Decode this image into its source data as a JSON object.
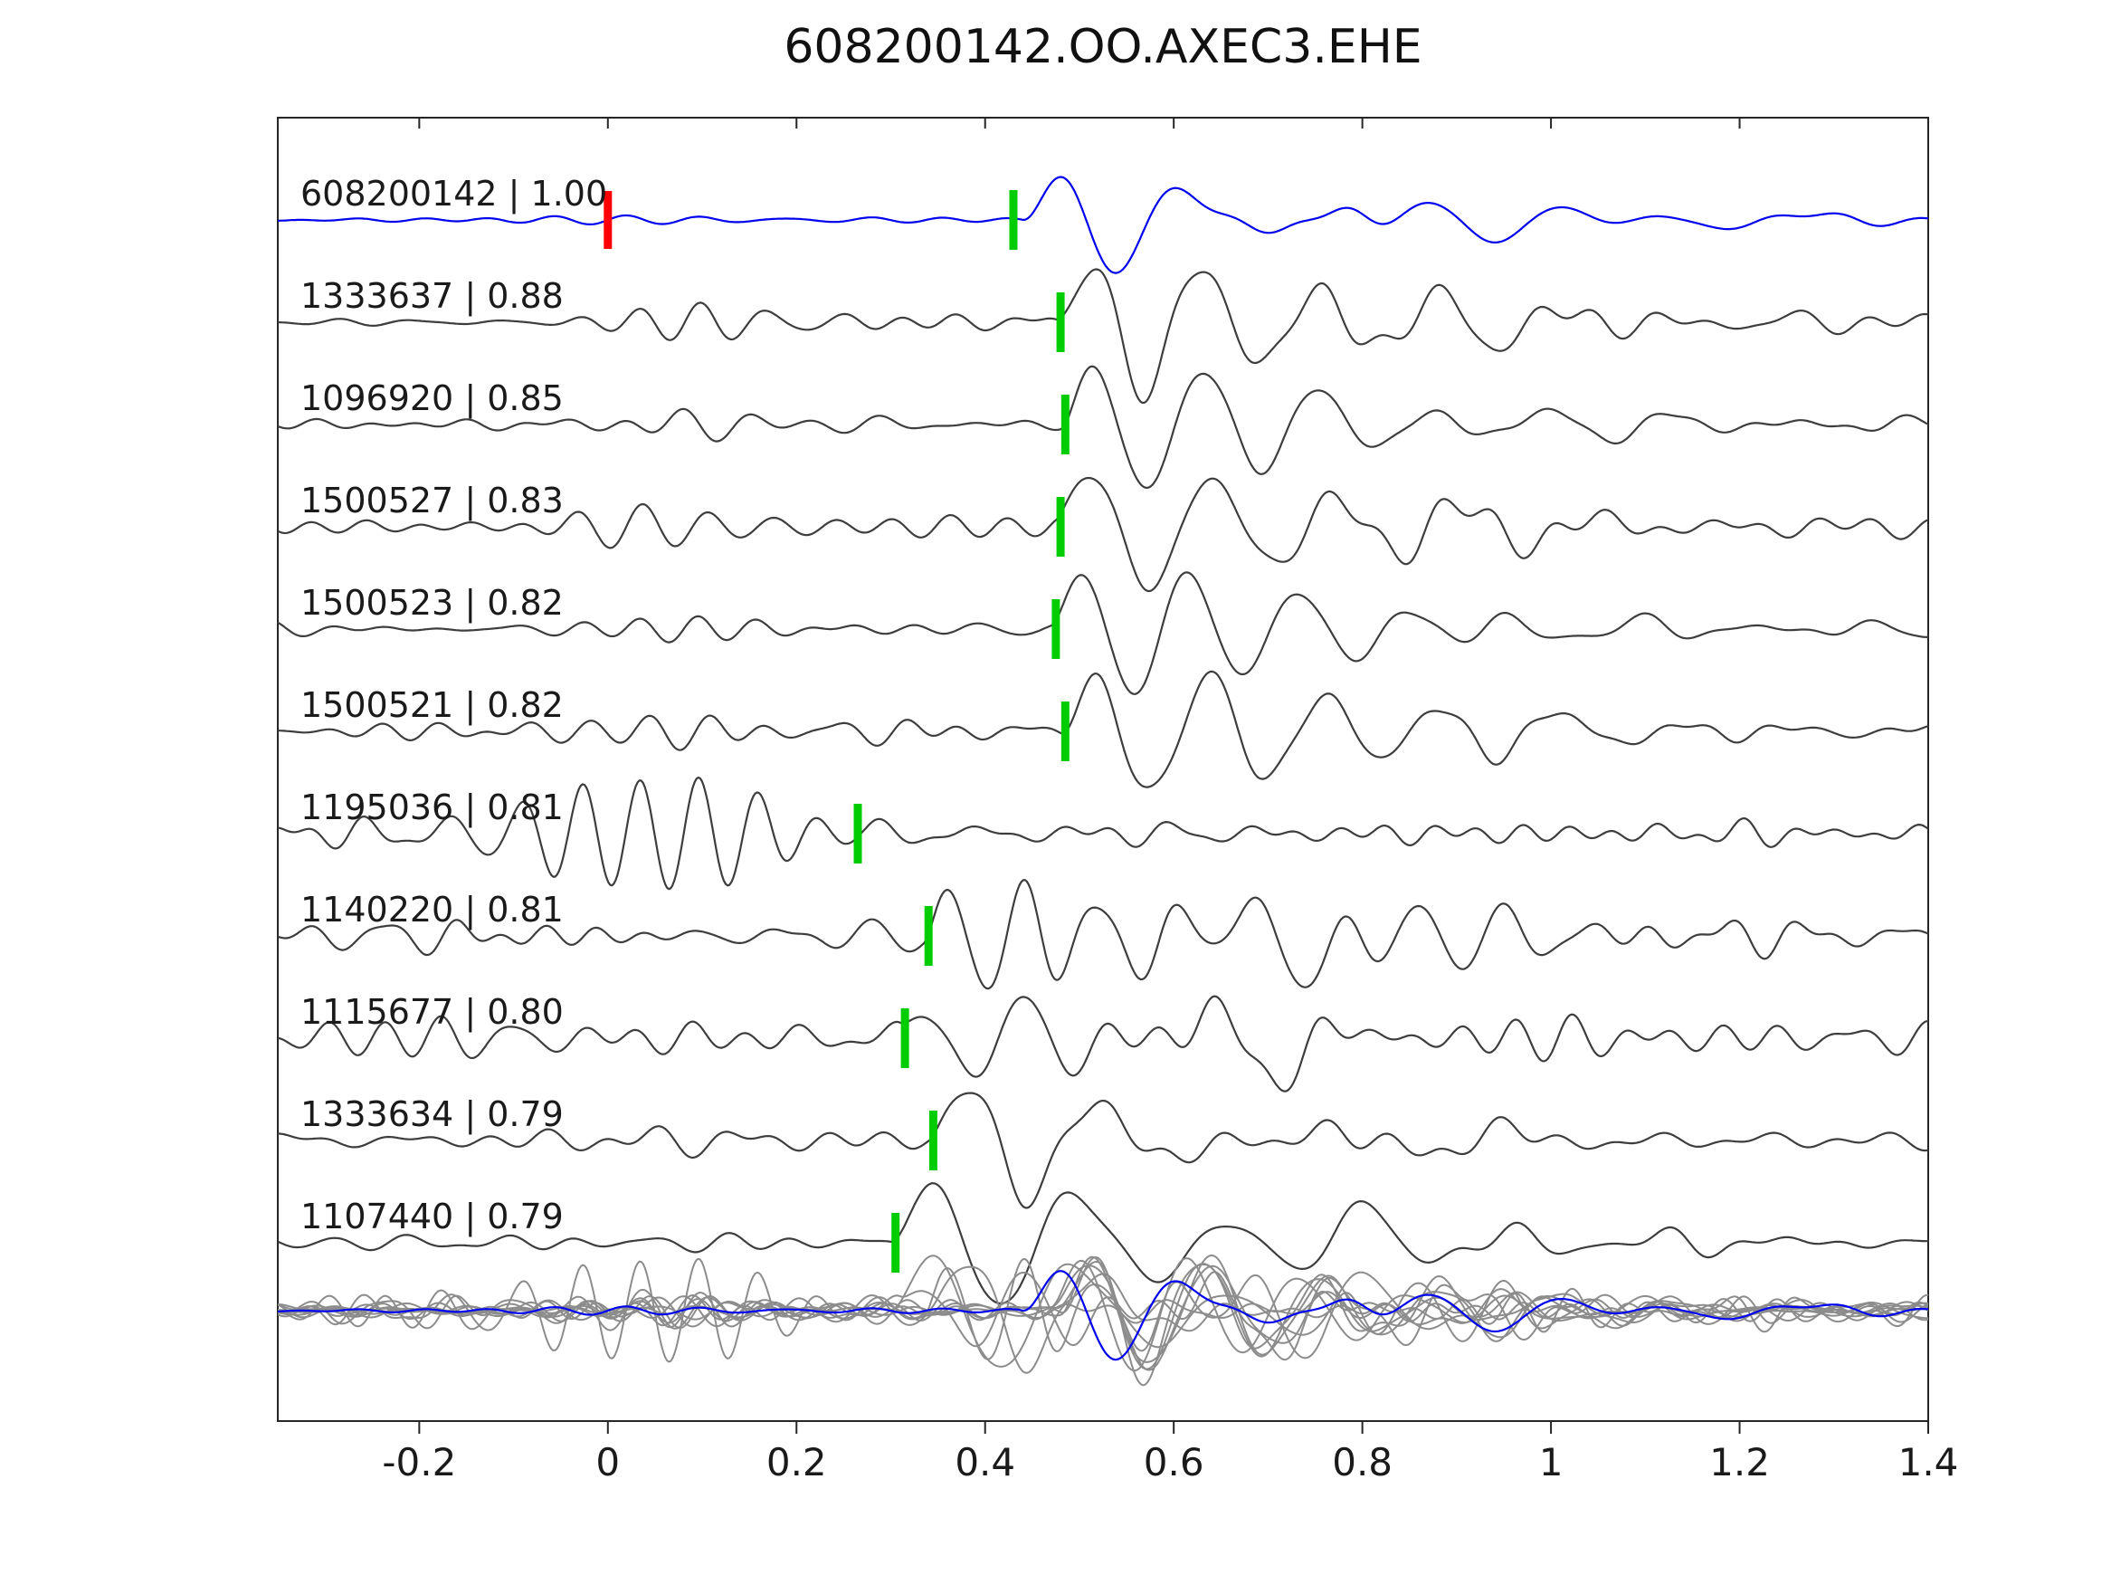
{
  "chart_data": {
    "type": "line",
    "title": "608200142.OO.AXEC3.EHE",
    "description": "Stacked seismogram waveform similarity plot: template trace (blue) on top, matched detection traces below labeled 'id | correlation', green ticks = pick times, red tick = zero time on template, bottom row = all traces superimposed.",
    "xlabel": "",
    "ylabel": "",
    "xlim": [
      -0.35,
      1.4
    ],
    "grid": false,
    "x_ticks": [
      {
        "value": -0.2,
        "label": "-0.2"
      },
      {
        "value": 0,
        "label": "0"
      },
      {
        "value": 0.2,
        "label": "0.2"
      },
      {
        "value": 0.4,
        "label": "0.4"
      },
      {
        "value": 0.6,
        "label": "0.6"
      },
      {
        "value": 0.8,
        "label": "0.8"
      },
      {
        "value": 1,
        "label": "1"
      },
      {
        "value": 1.2,
        "label": "1.2"
      },
      {
        "value": 1.4,
        "label": "1.4"
      }
    ],
    "colors": {
      "template": "#0000ee",
      "trace": "#3d3d3d",
      "overlay_gray": "#8c8c8c",
      "pick": "#00cc00",
      "zero_marker": "#ff0000",
      "frame": "#262626",
      "text": "#1a1a1a",
      "background": "#ffffff"
    },
    "rows": [
      {
        "id": "608200142",
        "correlation": "1.00",
        "label": "608200142 | 1.00",
        "role": "template",
        "pick_time": 0.43,
        "zero_marker": 0,
        "synth": {
          "seed": 11,
          "noise": {
            "amp": 0.05,
            "f1": 5,
            "f2": 16,
            "n": 8
          },
          "bursts": [
            {
              "type": "onset",
              "t0": 0.44,
              "f": 7.5,
              "amp": 2.1,
              "rise": 0.05,
              "decay": 0.2
            },
            {
              "type": "packet",
              "tc": 0.67,
              "w": 0.06,
              "f": 8,
              "amp": 0.7
            },
            {
              "type": "packet",
              "tc": 0.78,
              "w": 0.05,
              "f": 8,
              "amp": 0.6
            },
            {
              "type": "packet",
              "tc": 0.93,
              "w": 0.1,
              "f": 6,
              "amp": 0.3
            },
            {
              "type": "packet",
              "tc": 1.2,
              "w": 0.15,
              "f": 5,
              "amp": 0.15
            }
          ]
        }
      },
      {
        "id": "1333637",
        "correlation": "0.88",
        "label": "1333637 | 0.88",
        "role": "match",
        "pick_time": 0.48,
        "synth": {
          "seed": 23,
          "noise": {
            "amp": 0.12,
            "f1": 8,
            "f2": 20,
            "n": 10
          },
          "bursts": [
            {
              "type": "packet",
              "tc": 0.07,
              "w": 0.1,
              "f": 15,
              "amp": 0.38
            },
            {
              "type": "onset",
              "t0": 0.475,
              "f": 8,
              "amp": 2.0,
              "rise": 0.03,
              "decay": 0.28
            },
            {
              "type": "packet",
              "tc": 0.95,
              "w": 0.2,
              "f": 5.5,
              "amp": 0.15
            }
          ]
        }
      },
      {
        "id": "1096920",
        "correlation": "0.85",
        "label": "1096920 | 0.85",
        "role": "match",
        "pick_time": 0.485,
        "synth": {
          "seed": 37,
          "noise": {
            "amp": 0.11,
            "f1": 8,
            "f2": 20,
            "n": 10
          },
          "bursts": [
            {
              "type": "packet",
              "tc": 0.1,
              "w": 0.1,
              "f": 15,
              "amp": 0.28
            },
            {
              "type": "onset",
              "t0": 0.48,
              "f": 8.2,
              "amp": 2.0,
              "rise": 0.03,
              "decay": 0.28
            },
            {
              "type": "packet",
              "tc": 0.95,
              "w": 0.2,
              "f": 5.5,
              "amp": 0.15
            }
          ]
        }
      },
      {
        "id": "1500527",
        "correlation": "0.83",
        "label": "1500527 | 0.83",
        "role": "match",
        "pick_time": 0.48,
        "synth": {
          "seed": 41,
          "noise": {
            "amp": 0.12,
            "f1": 8,
            "f2": 20,
            "n": 10
          },
          "bursts": [
            {
              "type": "packet",
              "tc": 0.05,
              "w": 0.11,
              "f": 14,
              "amp": 0.4
            },
            {
              "type": "onset",
              "t0": 0.475,
              "f": 7.5,
              "amp": 2.0,
              "rise": 0.03,
              "decay": 0.26
            },
            {
              "type": "packet",
              "tc": 0.95,
              "w": 0.2,
              "f": 5.5,
              "amp": 0.15
            }
          ]
        }
      },
      {
        "id": "1500523",
        "correlation": "0.82",
        "label": "1500523 | 0.82",
        "role": "match",
        "pick_time": 0.475,
        "synth": {
          "seed": 53,
          "noise": {
            "amp": 0.12,
            "f1": 8,
            "f2": 19,
            "n": 10
          },
          "bursts": [
            {
              "type": "packet",
              "tc": 0.08,
              "w": 0.1,
              "f": 15,
              "amp": 0.34
            },
            {
              "type": "onset",
              "t0": 0.47,
              "f": 8.5,
              "amp": 1.95,
              "rise": 0.03,
              "decay": 0.27
            },
            {
              "type": "packet",
              "tc": 0.95,
              "w": 0.2,
              "f": 5.5,
              "amp": 0.15
            }
          ]
        }
      },
      {
        "id": "1500521",
        "correlation": "0.82",
        "label": "1500521 | 0.82",
        "role": "match",
        "pick_time": 0.485,
        "synth": {
          "seed": 67,
          "noise": {
            "amp": 0.12,
            "f1": 8,
            "f2": 20,
            "n": 10
          },
          "bursts": [
            {
              "type": "packet",
              "tc": 0.07,
              "w": 0.1,
              "f": 16,
              "amp": 0.36
            },
            {
              "type": "onset",
              "t0": 0.48,
              "f": 8,
              "amp": 2.0,
              "rise": 0.03,
              "decay": 0.28
            },
            {
              "type": "packet",
              "tc": 0.95,
              "w": 0.2,
              "f": 5.5,
              "amp": 0.15
            }
          ]
        }
      },
      {
        "id": "1195036",
        "correlation": "0.81",
        "label": "1195036 | 0.81",
        "role": "match",
        "pick_time": 0.265,
        "synth": {
          "seed": 71,
          "noise": {
            "amp": 0.13,
            "f1": 10,
            "f2": 22,
            "n": 12
          },
          "bursts": [
            {
              "type": "packet",
              "tc": 0.05,
              "w": 0.16,
              "f": 16,
              "amp": 1.15
            },
            {
              "type": "packet",
              "tc": -0.22,
              "w": 0.12,
              "f": 13,
              "amp": 0.35
            },
            {
              "type": "onset",
              "t0": 0.27,
              "f": 10,
              "amp": 0.3,
              "rise": 0.03,
              "decay": 0.4
            }
          ]
        }
      },
      {
        "id": "1140220",
        "correlation": "0.81",
        "label": "1140220 | 0.81",
        "role": "match",
        "pick_time": 0.34,
        "synth": {
          "seed": 83,
          "noise": {
            "amp": 0.2,
            "f1": 9,
            "f2": 22,
            "n": 12
          },
          "bursts": [
            {
              "type": "onset",
              "t0": 0.335,
              "f": 12,
              "amp": 1.3,
              "rise": 0.02,
              "decay": 0.25
            },
            {
              "type": "packet",
              "tc": 0.6,
              "w": 0.08,
              "f": 9,
              "amp": 0.5
            },
            {
              "type": "packet",
              "tc": 0.73,
              "w": 0.06,
              "f": 7,
              "amp": 1.0
            },
            {
              "type": "packet",
              "tc": 0.95,
              "w": 0.15,
              "f": 10,
              "amp": 0.3
            }
          ]
        }
      },
      {
        "id": "1115677",
        "correlation": "0.80",
        "label": "1115677 | 0.80",
        "role": "match",
        "pick_time": 0.315,
        "synth": {
          "seed": 97,
          "noise": {
            "amp": 0.22,
            "f1": 8,
            "f2": 20,
            "n": 12
          },
          "bursts": [
            {
              "type": "onset",
              "t0": 0.31,
              "f": 10,
              "amp": 1.4,
              "rise": 0.025,
              "decay": 0.2
            },
            {
              "type": "packet",
              "tc": 0.5,
              "w": 0.1,
              "f": 8,
              "amp": 0.45
            },
            {
              "type": "packet",
              "tc": 0.7,
              "w": 0.07,
              "f": 7,
              "amp": 1.1
            }
          ]
        }
      },
      {
        "id": "1333634",
        "correlation": "0.79",
        "label": "1333634 | 0.79",
        "role": "match",
        "pick_time": 0.345,
        "synth": {
          "seed": 103,
          "noise": {
            "amp": 0.13,
            "f1": 8,
            "f2": 18,
            "n": 10
          },
          "bursts": [
            {
              "type": "onset",
              "t0": 0.34,
              "f": 7,
              "amp": 1.9,
              "rise": 0.03,
              "decay": 0.2
            },
            {
              "type": "packet",
              "tc": 0.65,
              "w": 0.12,
              "f": 6,
              "amp": 0.42
            },
            {
              "type": "packet",
              "tc": 0.9,
              "w": 0.15,
              "f": 5,
              "amp": 0.22
            }
          ]
        }
      },
      {
        "id": "1107440",
        "correlation": "0.79",
        "label": "1107440 | 0.79",
        "role": "match",
        "pick_time": 0.305,
        "synth": {
          "seed": 113,
          "noise": {
            "amp": 0.1,
            "f1": 8,
            "f2": 18,
            "n": 10
          },
          "bursts": [
            {
              "type": "onset",
              "t0": 0.3,
              "f": 6.5,
              "amp": 2.0,
              "rise": 0.03,
              "decay": 0.3
            },
            {
              "type": "packet",
              "tc": 0.62,
              "w": 0.1,
              "f": 6,
              "amp": 0.55
            },
            {
              "type": "packet",
              "tc": 0.8,
              "w": 0.08,
              "f": 6,
              "amp": 0.5
            }
          ]
        }
      }
    ],
    "overlay": {
      "highlight_id": "608200142",
      "note": "all rows superimposed, template in blue drawn on top"
    }
  }
}
